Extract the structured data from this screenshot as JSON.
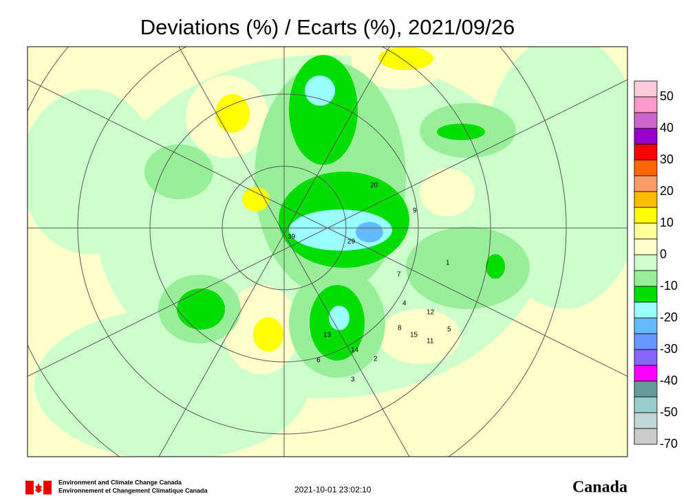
{
  "title": "Deviations (%) / Ecarts (%), 2021/09/26",
  "colorbar": {
    "labels": [
      "50",
      "40",
      "30",
      "20",
      "10",
      "0",
      "-10",
      "-20",
      "-30",
      "-40",
      "-50",
      "-70"
    ],
    "colors": [
      "#ffccdd",
      "#ff99cc",
      "#cc66cc",
      "#9900cc",
      "#ff0000",
      "#ff6600",
      "#ff9966",
      "#ffbb00",
      "#ffff00",
      "#ffff99",
      "#ffffcc",
      "#ccffcc",
      "#99ee99",
      "#00dd00",
      "#99ffff",
      "#66bbff",
      "#6699ff",
      "#8866ff",
      "#ff00ff",
      "#669999",
      "#99cccc",
      "#c0d8d8",
      "#cccccc"
    ]
  },
  "map": {
    "station_labels": [
      "39",
      "29",
      "20",
      "13",
      "14",
      "15",
      "11",
      "12",
      "8",
      "6",
      "4",
      "7",
      "1",
      "2",
      "3",
      "9",
      "5"
    ]
  },
  "footer": {
    "agency_en": "Environment and Climate Change Canada",
    "agency_fr": "Environnement et Changement Climatique Canada",
    "timestamp": "2021-10-01 23:02:10",
    "wordmark": "Canada"
  }
}
